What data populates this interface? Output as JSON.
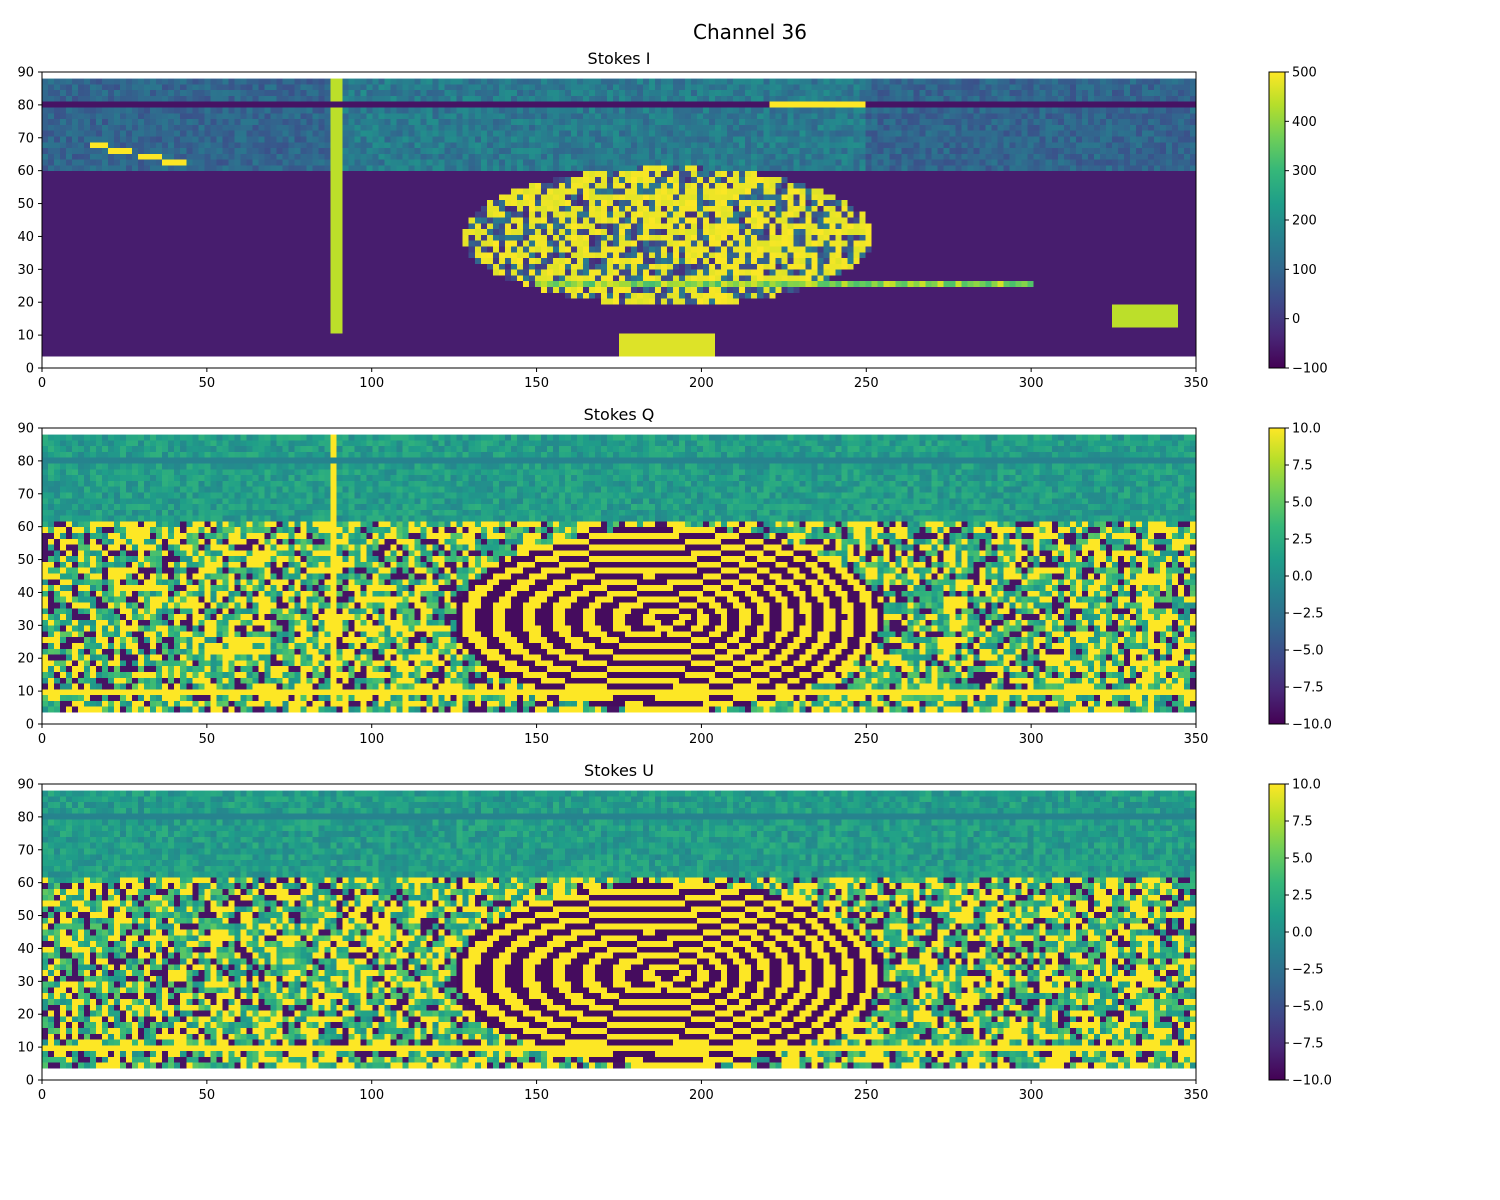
{
  "figure": {
    "suptitle": "Channel 36"
  },
  "colormap": [
    "#440154",
    "#482878",
    "#3e4989",
    "#31688e",
    "#26828e",
    "#1f9e89",
    "#35b779",
    "#6ece58",
    "#b5de2b",
    "#fde725"
  ],
  "chart_data": [
    {
      "type": "heatmap",
      "title": "Stokes I",
      "xlim": [
        0,
        350
      ],
      "ylim": [
        0,
        90
      ],
      "x_ticks": [
        "0",
        "50",
        "100",
        "150",
        "200",
        "250",
        "300",
        "350"
      ],
      "y_ticks": [
        "0",
        "10",
        "20",
        "30",
        "40",
        "50",
        "60",
        "70",
        "80",
        "90"
      ],
      "clim": [
        -100,
        500
      ],
      "colorbar_ticks": [
        "−100",
        "0",
        "100",
        "200",
        "300",
        "400",
        "500"
      ],
      "data_extent": {
        "x": [
          0,
          350
        ],
        "y": [
          3.5,
          88
        ]
      }
    },
    {
      "type": "heatmap",
      "title": "Stokes Q",
      "xlim": [
        0,
        350
      ],
      "ylim": [
        0,
        90
      ],
      "x_ticks": [
        "0",
        "50",
        "100",
        "150",
        "200",
        "250",
        "300",
        "350"
      ],
      "y_ticks": [
        "0",
        "10",
        "20",
        "30",
        "40",
        "50",
        "60",
        "70",
        "80",
        "90"
      ],
      "clim": [
        -10,
        10
      ],
      "colorbar_ticks": [
        "−10.0",
        "−7.5",
        "−5.0",
        "−2.5",
        "0.0",
        "2.5",
        "5.0",
        "7.5",
        "10.0"
      ],
      "data_extent": {
        "x": [
          0,
          350
        ],
        "y": [
          3.5,
          88
        ]
      }
    },
    {
      "type": "heatmap",
      "title": "Stokes U",
      "xlim": [
        0,
        350
      ],
      "ylim": [
        0,
        90
      ],
      "x_ticks": [
        "0",
        "50",
        "100",
        "150",
        "200",
        "250",
        "300",
        "350"
      ],
      "y_ticks": [
        "0",
        "10",
        "20",
        "30",
        "40",
        "50",
        "60",
        "70",
        "80",
        "90"
      ],
      "clim": [
        -10,
        10
      ],
      "colorbar_ticks": [
        "−10.0",
        "−7.5",
        "−5.0",
        "−2.5",
        "0.0",
        "2.5",
        "5.0",
        "7.5",
        "10.0"
      ],
      "data_extent": {
        "x": [
          0,
          350
        ],
        "y": [
          3.5,
          88
        ]
      }
    }
  ]
}
